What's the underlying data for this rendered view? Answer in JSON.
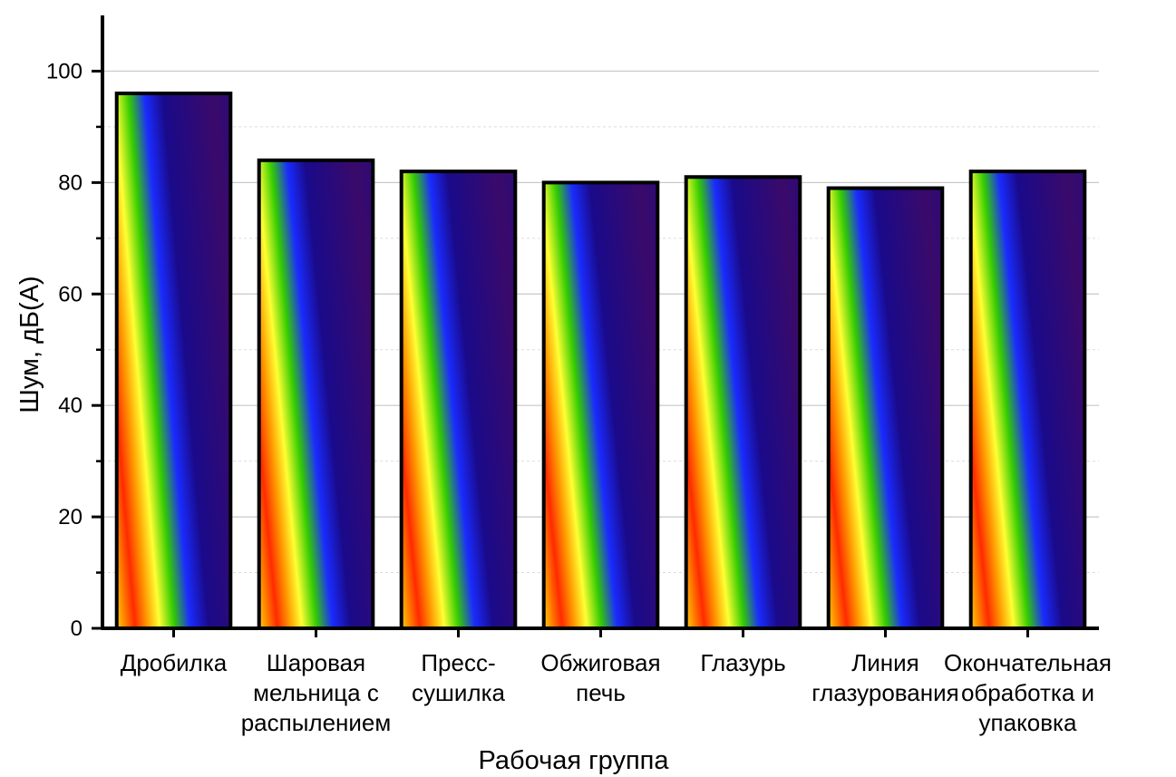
{
  "chart_data": {
    "type": "bar",
    "categories": [
      [
        "Дробилка"
      ],
      [
        "Шаровая",
        "мельница с",
        "распылением"
      ],
      [
        "Пресс-",
        "сушилка"
      ],
      [
        "Обжиговая",
        "печь"
      ],
      [
        "Глазурь"
      ],
      [
        "Линия",
        "глазурования"
      ],
      [
        "Окончательная",
        "обработка и",
        "упаковка"
      ]
    ],
    "values": [
      96,
      84,
      82,
      80,
      81,
      79,
      82
    ],
    "xlabel": "Рабочая группа",
    "ylabel": "Шум, дБ(А)",
    "ylim": [
      0,
      110
    ],
    "yticks": [
      0,
      20,
      40,
      60,
      80,
      100
    ],
    "grid": true,
    "bar_fill": "rainbow gradient",
    "colors": {
      "bar_outline": "#000000",
      "gradient": [
        "#ff2a00",
        "#ffd400",
        "#ffff33",
        "#33cc00",
        "#00cc66",
        "#1a2bff",
        "#1a0a8a",
        "#3a0a6a"
      ]
    }
  }
}
